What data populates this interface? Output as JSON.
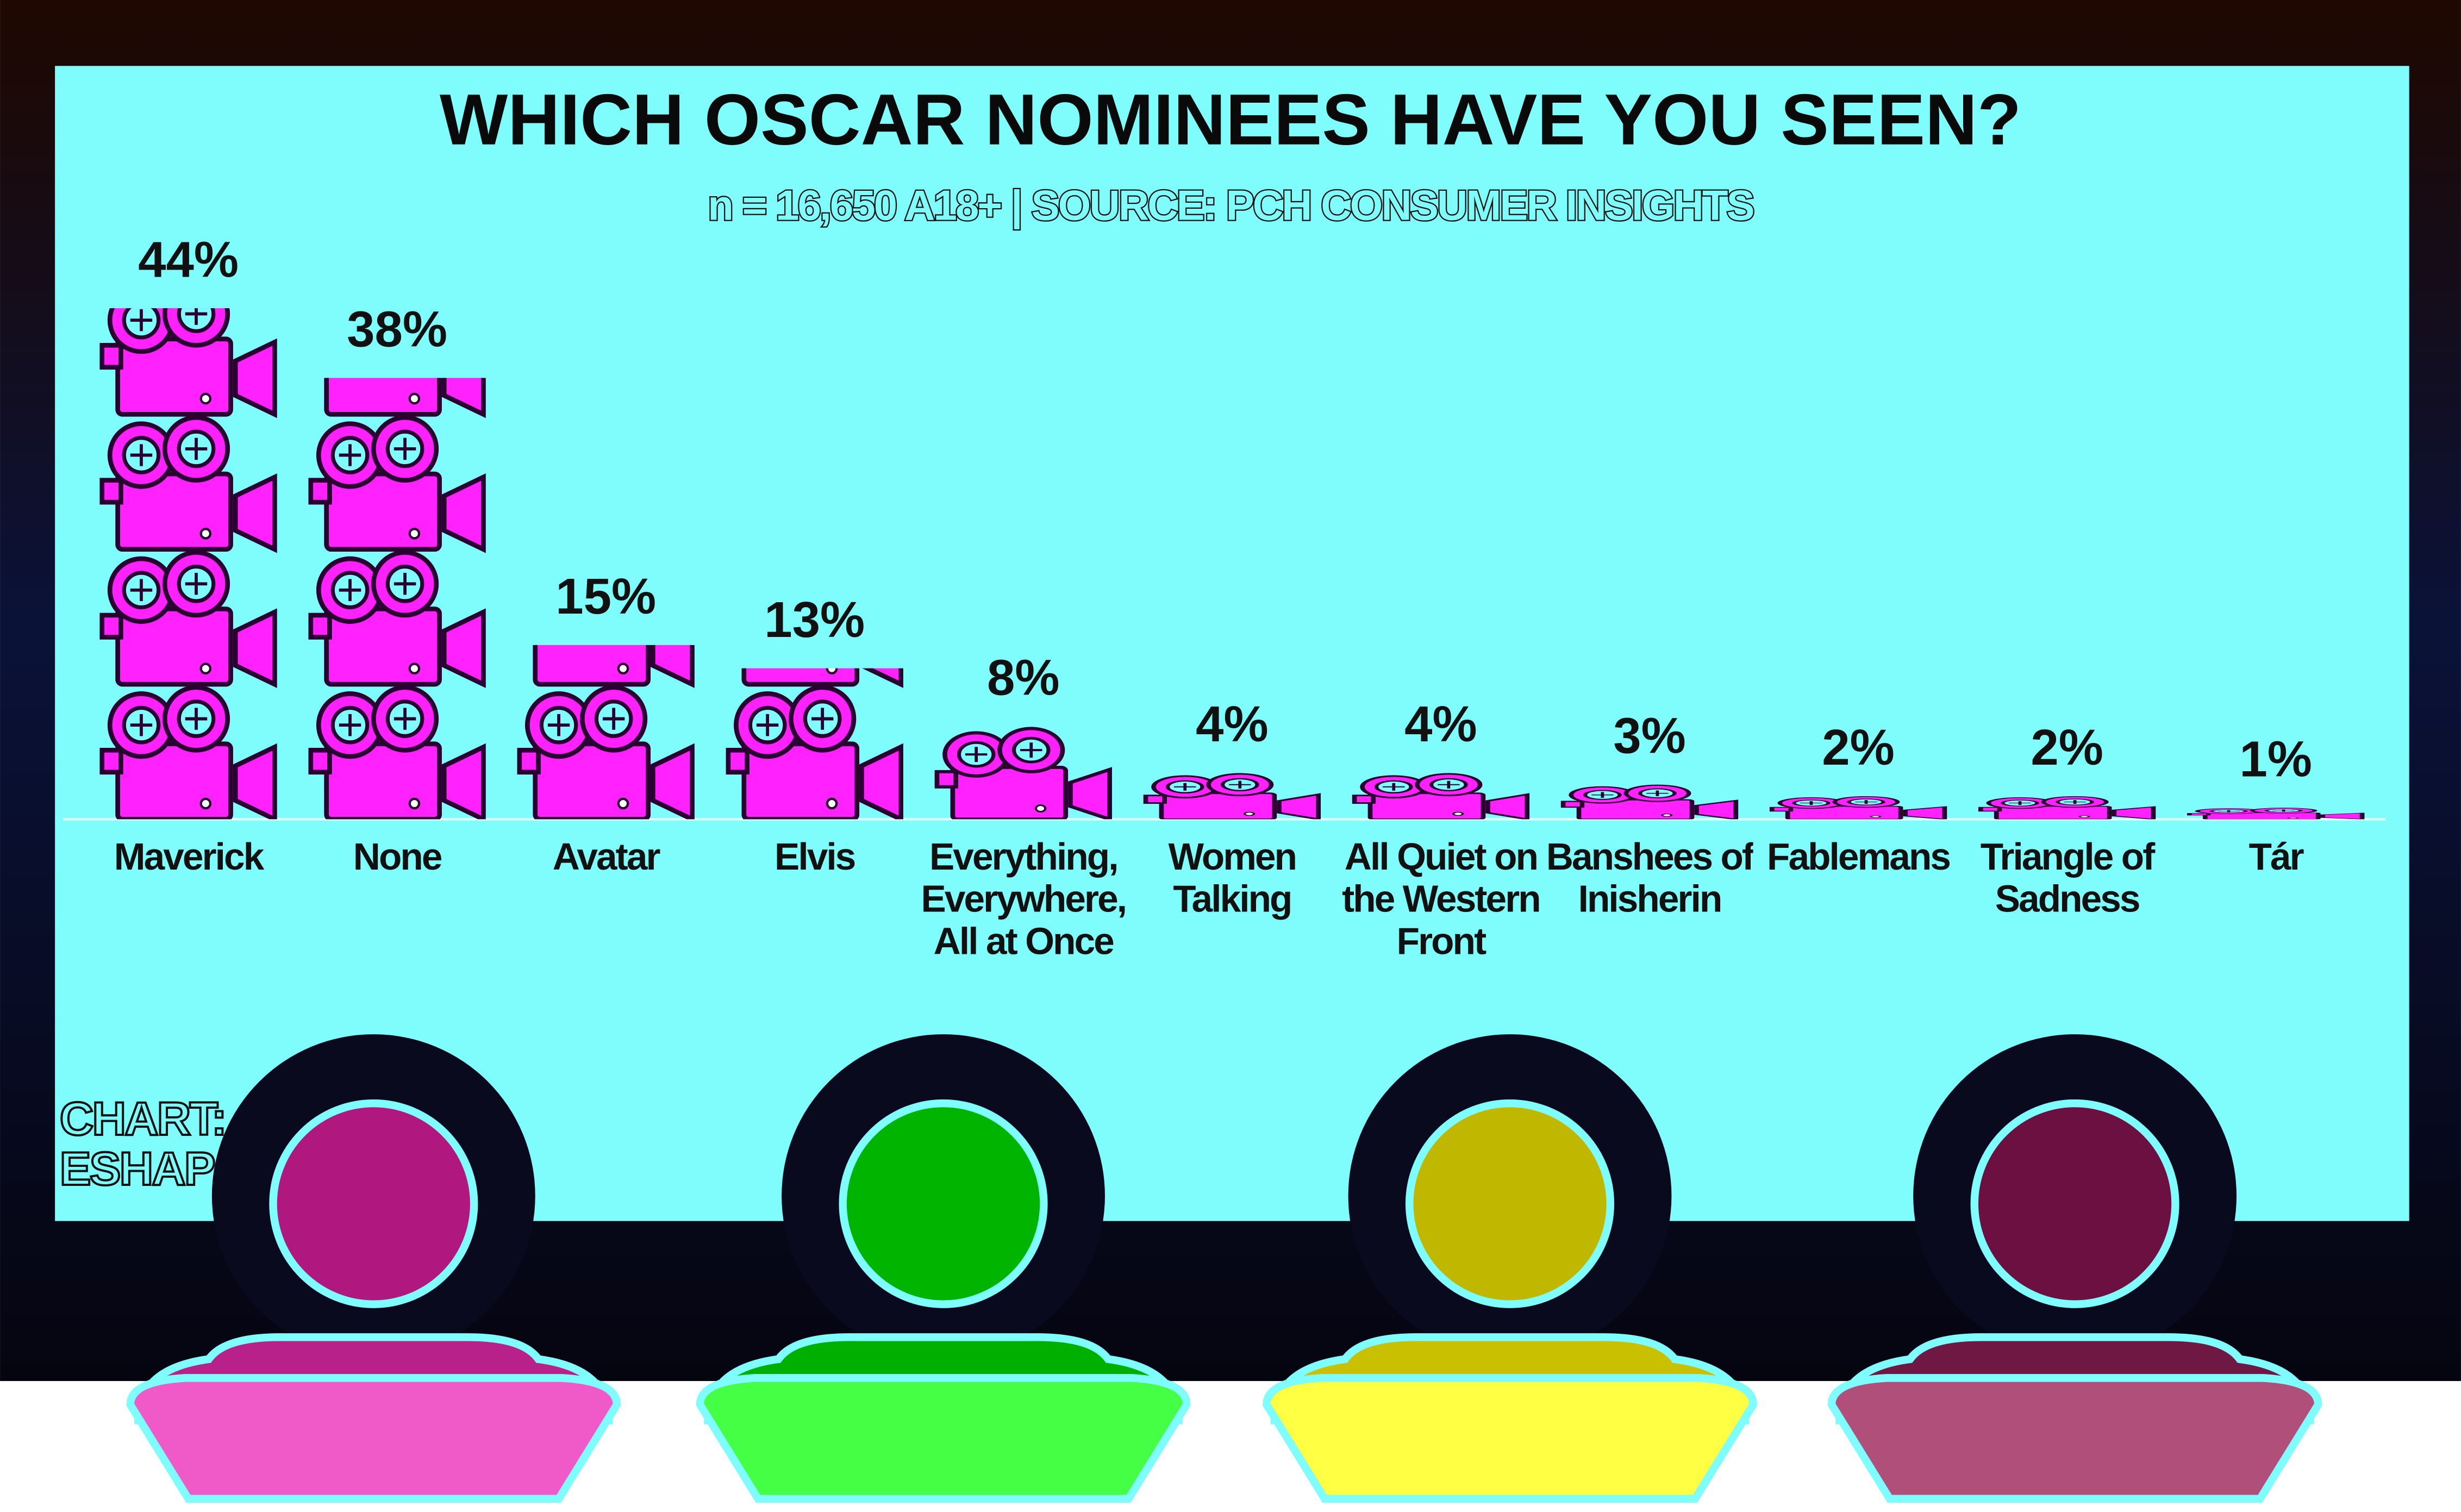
{
  "chart_data": {
    "type": "pictogram",
    "title": "WHICH OSCAR NOMINEES HAVE YOU SEEN?",
    "subtitle": "n = 16,650  A18+ | SOURCE: PCH CONSUMER INSIGHTS",
    "credit": "CHART: ESHAP",
    "categories": [
      "Maverick",
      "None",
      "Avatar",
      "Elvis",
      "Everything, Everywhere, All at Once",
      "Women Talking",
      "All Quiet on the Western Front",
      "Banshees of Inisherin",
      "Fablemans",
      "Triangle of Sadness",
      "Tár"
    ],
    "values": [
      44,
      38,
      15,
      13,
      8,
      4,
      4,
      3,
      2,
      2,
      1
    ],
    "value_labels": [
      "44%",
      "38%",
      "15%",
      "13%",
      "8%",
      "4%",
      "4%",
      "3%",
      "2%",
      "2%",
      "1%"
    ],
    "color": "#ff22ff"
  }
}
